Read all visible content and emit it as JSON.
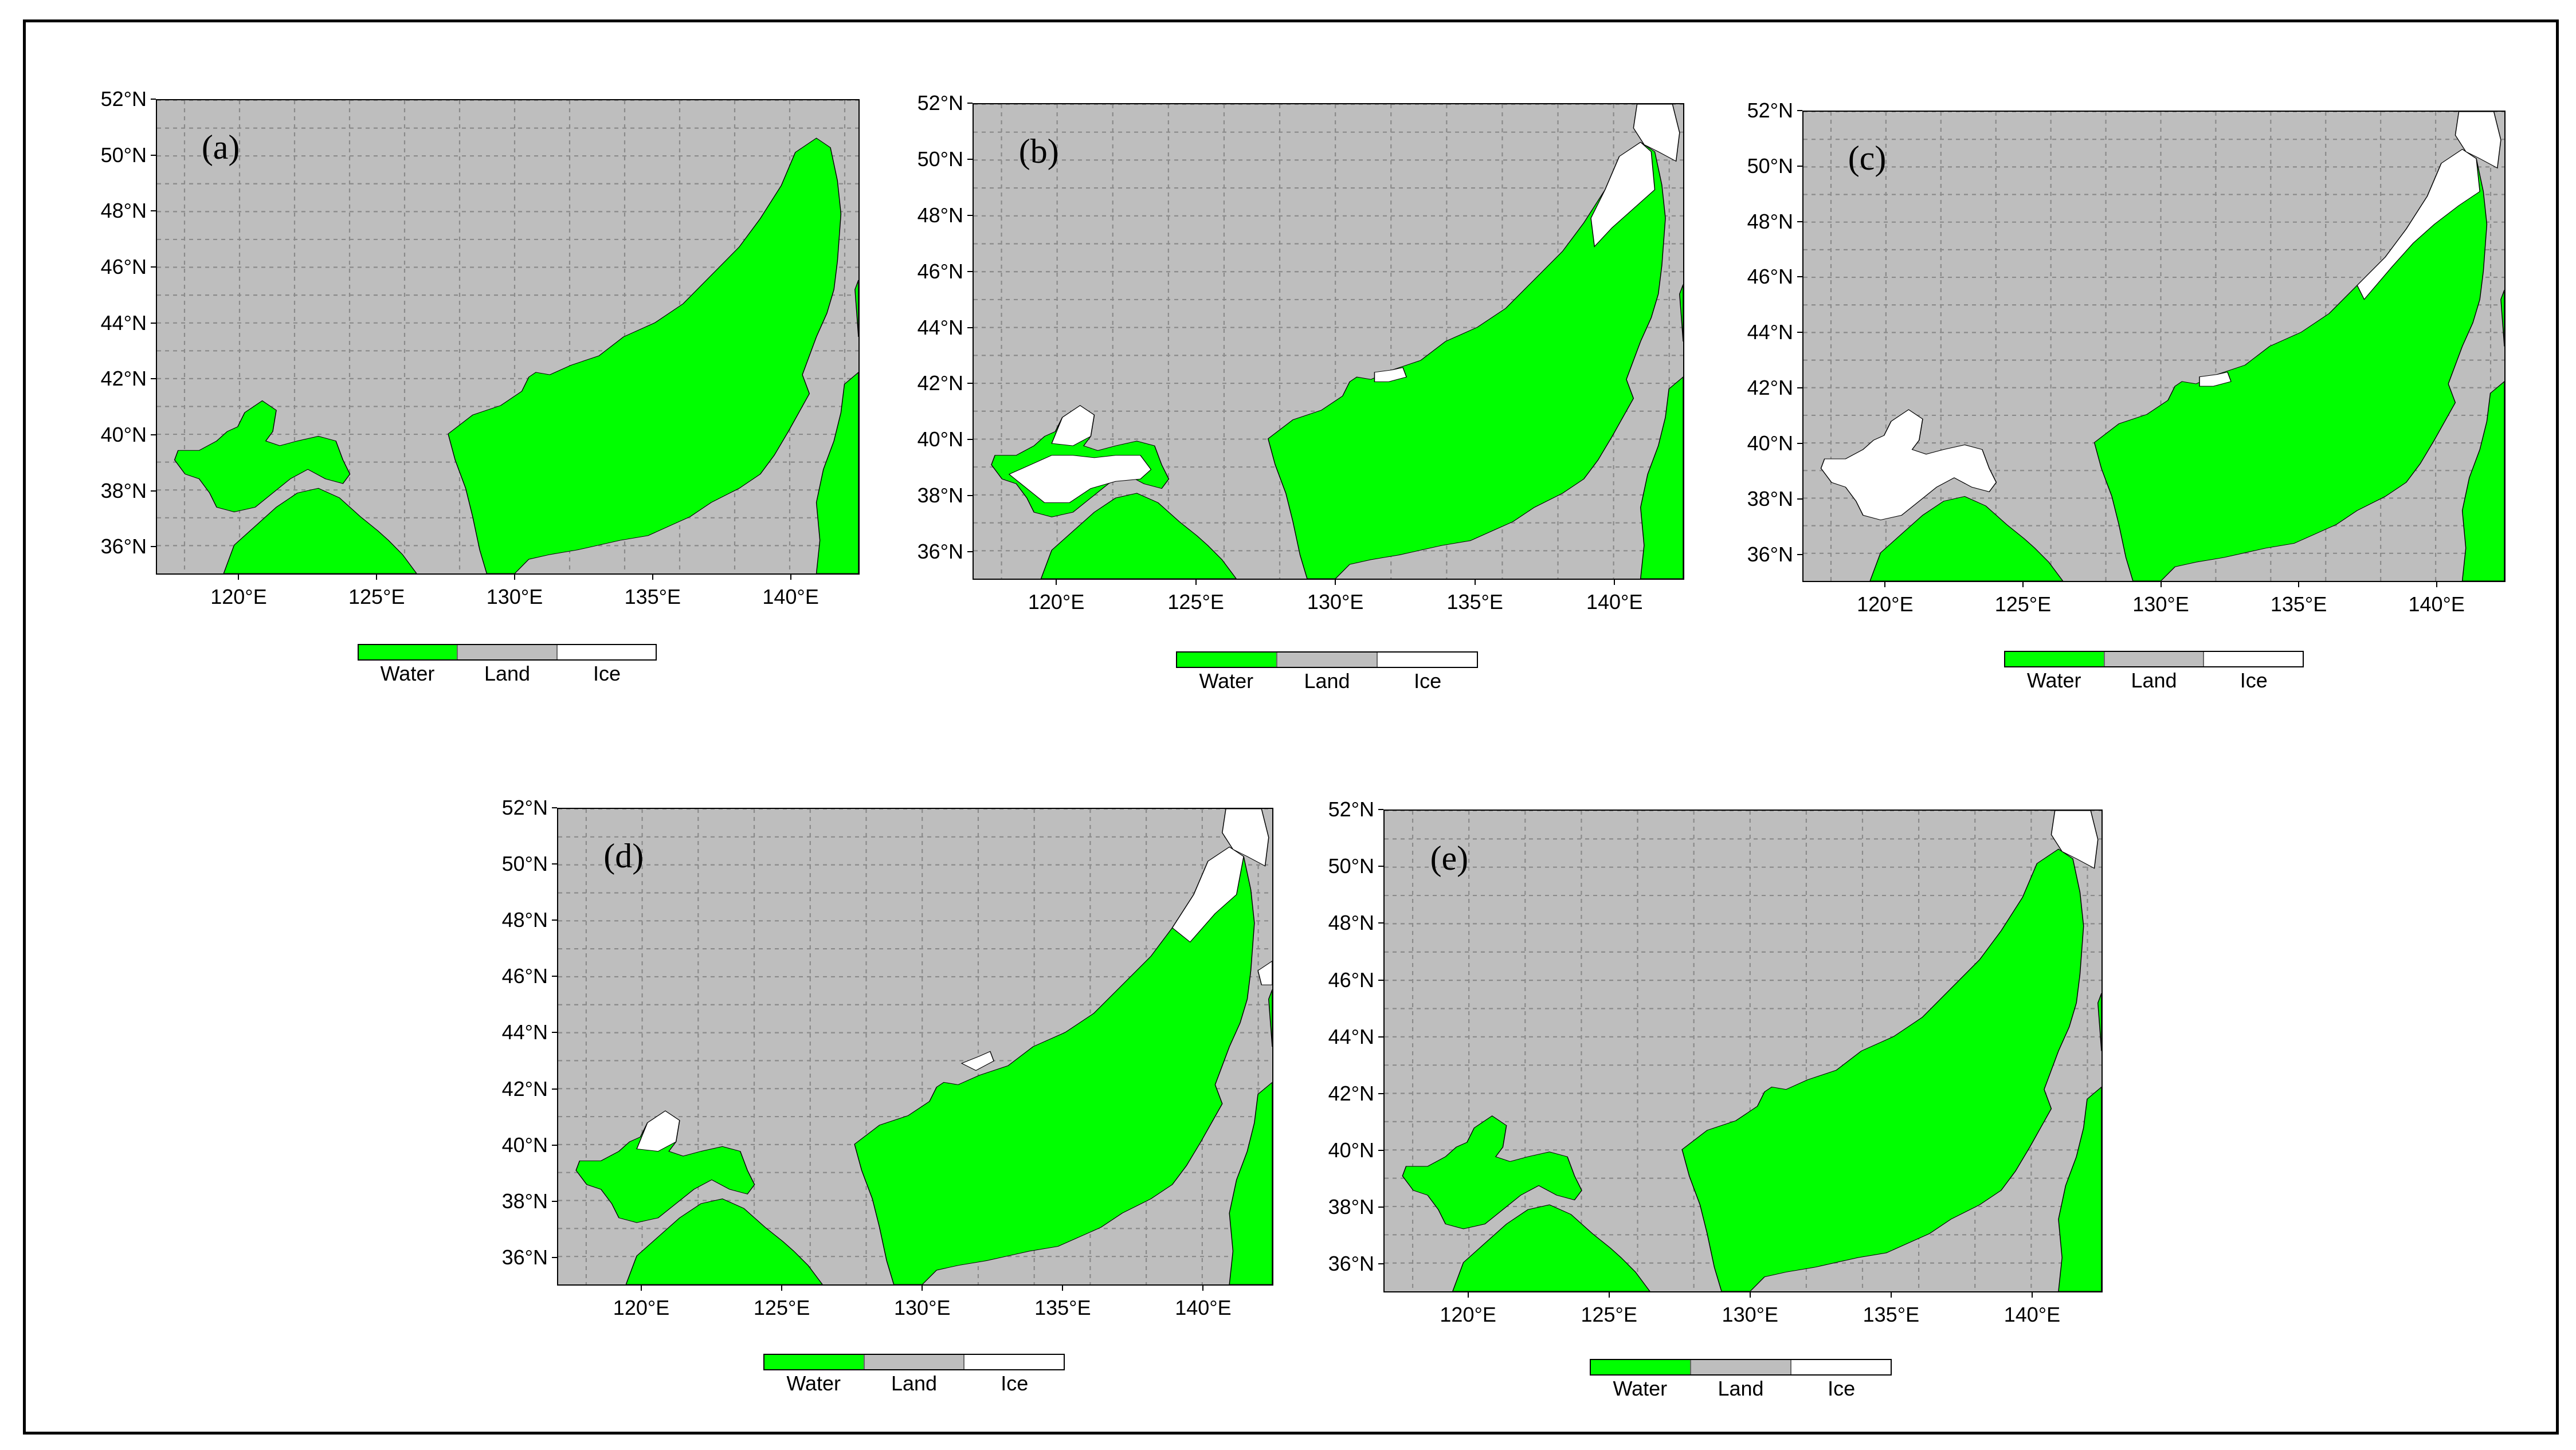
{
  "colors": {
    "water": "#00ff00",
    "land": "#bebebe",
    "ice": "#ffffff"
  },
  "legend": [
    {
      "label": "Water",
      "color": "#00ff00"
    },
    {
      "label": "Land",
      "color": "#bebebe"
    },
    {
      "label": "Ice",
      "color": "#ffffff"
    }
  ],
  "axes": {
    "lat_labels": [
      "52°N",
      "50°N",
      "48°N",
      "46°N",
      "44°N",
      "42°N",
      "40°N",
      "38°N",
      "36°N"
    ],
    "lon_labels": [
      "120°E",
      "125°E",
      "130°E",
      "135°E",
      "140°E"
    ],
    "lat_range": [
      35,
      52
    ],
    "lon_range": [
      117,
      142.5
    ]
  },
  "panels": [
    {
      "label": "(a)",
      "ice_extent": "none"
    },
    {
      "label": "(b)",
      "ice_extent": "moderate"
    },
    {
      "label": "(c)",
      "ice_extent": "large"
    },
    {
      "label": "(d)",
      "ice_extent": "small"
    },
    {
      "label": "(e)",
      "ice_extent": "minimal"
    }
  ]
}
